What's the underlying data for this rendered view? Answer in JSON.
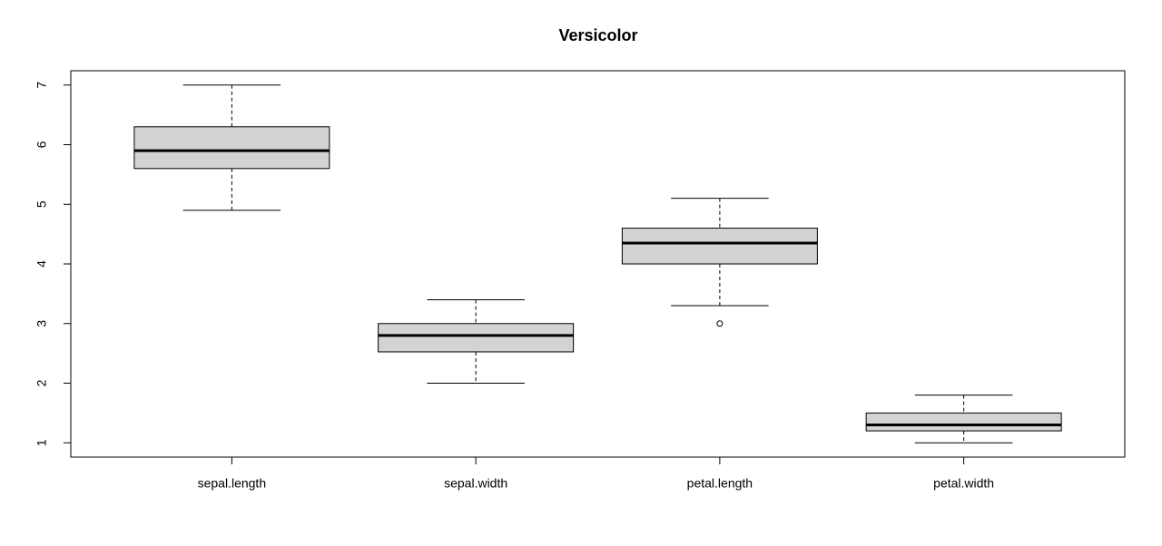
{
  "chart_data": {
    "type": "box",
    "title": "Versicolor",
    "categories": [
      "sepal.length",
      "sepal.width",
      "petal.length",
      "petal.width"
    ],
    "boxes": [
      {
        "whisker_low": 4.9,
        "q1": 5.6,
        "median": 5.9,
        "q3": 6.3,
        "whisker_high": 7.0,
        "outliers": []
      },
      {
        "whisker_low": 2.0,
        "q1": 2.525,
        "median": 2.8,
        "q3": 3.0,
        "whisker_high": 3.4,
        "outliers": []
      },
      {
        "whisker_low": 3.3,
        "q1": 4.0,
        "median": 4.35,
        "q3": 4.6,
        "whisker_high": 5.1,
        "outliers": [
          3.0
        ]
      },
      {
        "whisker_low": 1.0,
        "q1": 1.2,
        "median": 1.3,
        "q3": 1.5,
        "whisker_high": 1.8,
        "outliers": []
      }
    ],
    "color": "#d3d3d3",
    "ylim": [
      0.76,
      7.24
    ],
    "yticks": [
      1,
      2,
      3,
      4,
      5,
      6,
      7
    ]
  }
}
